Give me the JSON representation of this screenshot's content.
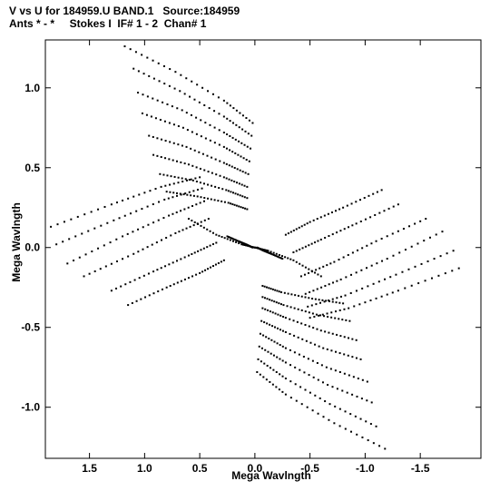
{
  "header": {
    "title_line1": "V vs U for 184959.U BAND.1   Source:184959",
    "title_line2": "Ants * - *     Stokes I  IF# 1 - 2  Chan# 1"
  },
  "chart_data": {
    "type": "scatter",
    "title": "V vs U for 184959.U BAND.1   Source:184959",
    "subtitle": "Ants * - *     Stokes I  IF# 1 - 2  Chan# 1",
    "xlabel": "Mega Wavlngth",
    "ylabel": "Mega Wavlngth",
    "xlim": [
      1.9,
      -2.05
    ],
    "ylim": [
      -1.32,
      1.3
    ],
    "x_reversed": true,
    "x_ticks": [
      1.5,
      1.0,
      0.5,
      0.0,
      -0.5,
      -1.0,
      -1.5
    ],
    "x_tick_labels": [
      "1.5",
      "1.0",
      "0.5",
      "0.0",
      "-0.5",
      "-1.0",
      "-1.5"
    ],
    "y_ticks": [
      1.0,
      0.5,
      0.0,
      -0.5,
      -1.0
    ],
    "y_tick_labels": [
      "1.0",
      "0.5",
      "0.0",
      "-0.5",
      "-1.0"
    ],
    "marker_color": "#000000",
    "grid": false,
    "legend": "none",
    "series": [
      {
        "description": "uv coverage tracks (samples along each track; point-symmetric data u,v and -u,-v)",
        "tracks": [
          {
            "u": [
              1.18,
              0.72,
              0.28,
              0.02
            ],
            "v": [
              1.26,
              1.1,
              0.92,
              0.78
            ]
          },
          {
            "u": [
              1.1,
              0.68,
              0.28,
              0.03
            ],
            "v": [
              1.12,
              0.98,
              0.82,
              0.7
            ]
          },
          {
            "u": [
              1.06,
              0.66,
              0.28,
              0.04
            ],
            "v": [
              0.97,
              0.86,
              0.72,
              0.62
            ]
          },
          {
            "u": [
              1.02,
              0.65,
              0.28,
              0.05
            ],
            "v": [
              0.84,
              0.75,
              0.63,
              0.54
            ]
          },
          {
            "u": [
              0.96,
              0.62,
              0.28,
              0.06
            ],
            "v": [
              0.7,
              0.63,
              0.53,
              0.46
            ]
          },
          {
            "u": [
              0.92,
              0.6,
              0.28,
              0.07
            ],
            "v": [
              0.58,
              0.52,
              0.44,
              0.38
            ]
          },
          {
            "u": [
              0.86,
              0.56,
              0.26,
              0.07
            ],
            "v": [
              0.46,
              0.42,
              0.36,
              0.31
            ]
          },
          {
            "u": [
              0.8,
              0.52,
              0.24,
              0.07
            ],
            "v": [
              0.35,
              0.32,
              0.28,
              0.24
            ]
          },
          {
            "u": [
              1.85,
              1.3,
              0.85,
              0.5
            ],
            "v": [
              0.13,
              0.27,
              0.38,
              0.44
            ]
          },
          {
            "u": [
              1.8,
              1.28,
              0.82,
              0.48
            ],
            "v": [
              0.02,
              0.17,
              0.3,
              0.37
            ]
          },
          {
            "u": [
              1.7,
              1.2,
              0.78,
              0.46
            ],
            "v": [
              -0.1,
              0.07,
              0.2,
              0.29
            ]
          },
          {
            "u": [
              1.55,
              1.1,
              0.72,
              0.42
            ],
            "v": [
              -0.18,
              -0.04,
              0.09,
              0.18
            ]
          },
          {
            "u": [
              1.3,
              0.92,
              0.6,
              0.35
            ],
            "v": [
              -0.27,
              -0.15,
              -0.05,
              0.03
            ]
          },
          {
            "u": [
              1.15,
              0.8,
              0.5,
              0.28
            ],
            "v": [
              -0.36,
              -0.25,
              -0.16,
              -0.08
            ]
          },
          {
            "u": [
              0.6,
              0.35,
              0.12,
              0.0
            ],
            "v": [
              0.18,
              0.08,
              0.02,
              0.0
            ]
          },
          {
            "u": [
              0.25,
              0.15,
              0.08,
              0.02
            ],
            "v": [
              0.07,
              0.04,
              0.02,
              0.0
            ]
          }
        ]
      }
    ]
  }
}
